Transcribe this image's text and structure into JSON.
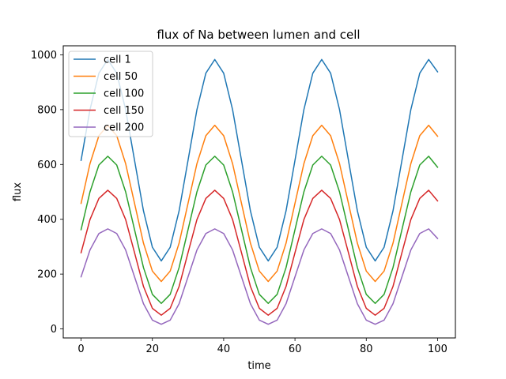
{
  "chart_data": {
    "type": "line",
    "title": "flux of Na between lumen and cell",
    "xlabel": "time",
    "ylabel": "flux",
    "xlim": [
      -5,
      105
    ],
    "ylim": [
      -33,
      1033
    ],
    "xticks": [
      0,
      20,
      40,
      60,
      80,
      100
    ],
    "yticks": [
      0,
      200,
      400,
      600,
      800,
      1000
    ],
    "grid": false,
    "legend_position": "top-left",
    "x": [
      0,
      2.5,
      5,
      7.5,
      10,
      12.5,
      15,
      17.5,
      20,
      22.5,
      25,
      27.5,
      30,
      32.5,
      35,
      37.5,
      40,
      42.5,
      45,
      47.5,
      50,
      52.5,
      55,
      57.5,
      60,
      62.5,
      65,
      67.5,
      70,
      72.5,
      75,
      77.5,
      80,
      82.5,
      85,
      87.5,
      90,
      92.5,
      95,
      97.5,
      100
    ],
    "series": [
      {
        "name": "cell 1",
        "color": "#1f77b4",
        "values": [
          615,
          800,
          933,
          983,
          933,
          800,
          615,
          431,
          298,
          248,
          298,
          431,
          615,
          800,
          933,
          983,
          933,
          800,
          615,
          431,
          298,
          248,
          298,
          431,
          615,
          800,
          933,
          983,
          933,
          800,
          615,
          431,
          298,
          248,
          298,
          431,
          615,
          800,
          933,
          983,
          938
        ]
      },
      {
        "name": "cell 50",
        "color": "#ff7f0e",
        "values": [
          458,
          603,
          705,
          743,
          705,
          603,
          458,
          313,
          211,
          173,
          211,
          313,
          458,
          603,
          705,
          743,
          705,
          603,
          458,
          313,
          211,
          173,
          211,
          313,
          458,
          603,
          705,
          743,
          705,
          603,
          458,
          313,
          211,
          173,
          211,
          313,
          458,
          603,
          705,
          743,
          703
        ]
      },
      {
        "name": "cell 100",
        "color": "#2ca02c",
        "values": [
          362,
          500,
          598,
          630,
          598,
          500,
          362,
          224,
          126,
          93,
          126,
          224,
          362,
          500,
          598,
          630,
          598,
          500,
          362,
          224,
          126,
          93,
          126,
          224,
          362,
          500,
          598,
          630,
          598,
          500,
          362,
          224,
          126,
          93,
          126,
          224,
          362,
          500,
          598,
          630,
          590
        ]
      },
      {
        "name": "cell 150",
        "color": "#d62728",
        "values": [
          278,
          399,
          476,
          506,
          476,
          399,
          278,
          155,
          75,
          50,
          75,
          155,
          278,
          399,
          476,
          506,
          476,
          399,
          278,
          155,
          75,
          50,
          75,
          155,
          278,
          399,
          476,
          506,
          476,
          399,
          278,
          155,
          75,
          50,
          75,
          155,
          278,
          399,
          476,
          506,
          467
        ]
      },
      {
        "name": "cell 200",
        "color": "#9467bd",
        "values": [
          190,
          288,
          348,
          365,
          348,
          288,
          190,
          92,
          32,
          17,
          32,
          92,
          190,
          288,
          348,
          365,
          348,
          288,
          190,
          92,
          32,
          17,
          32,
          92,
          190,
          288,
          348,
          365,
          348,
          288,
          190,
          92,
          32,
          17,
          32,
          92,
          190,
          288,
          348,
          365,
          330
        ]
      }
    ]
  }
}
